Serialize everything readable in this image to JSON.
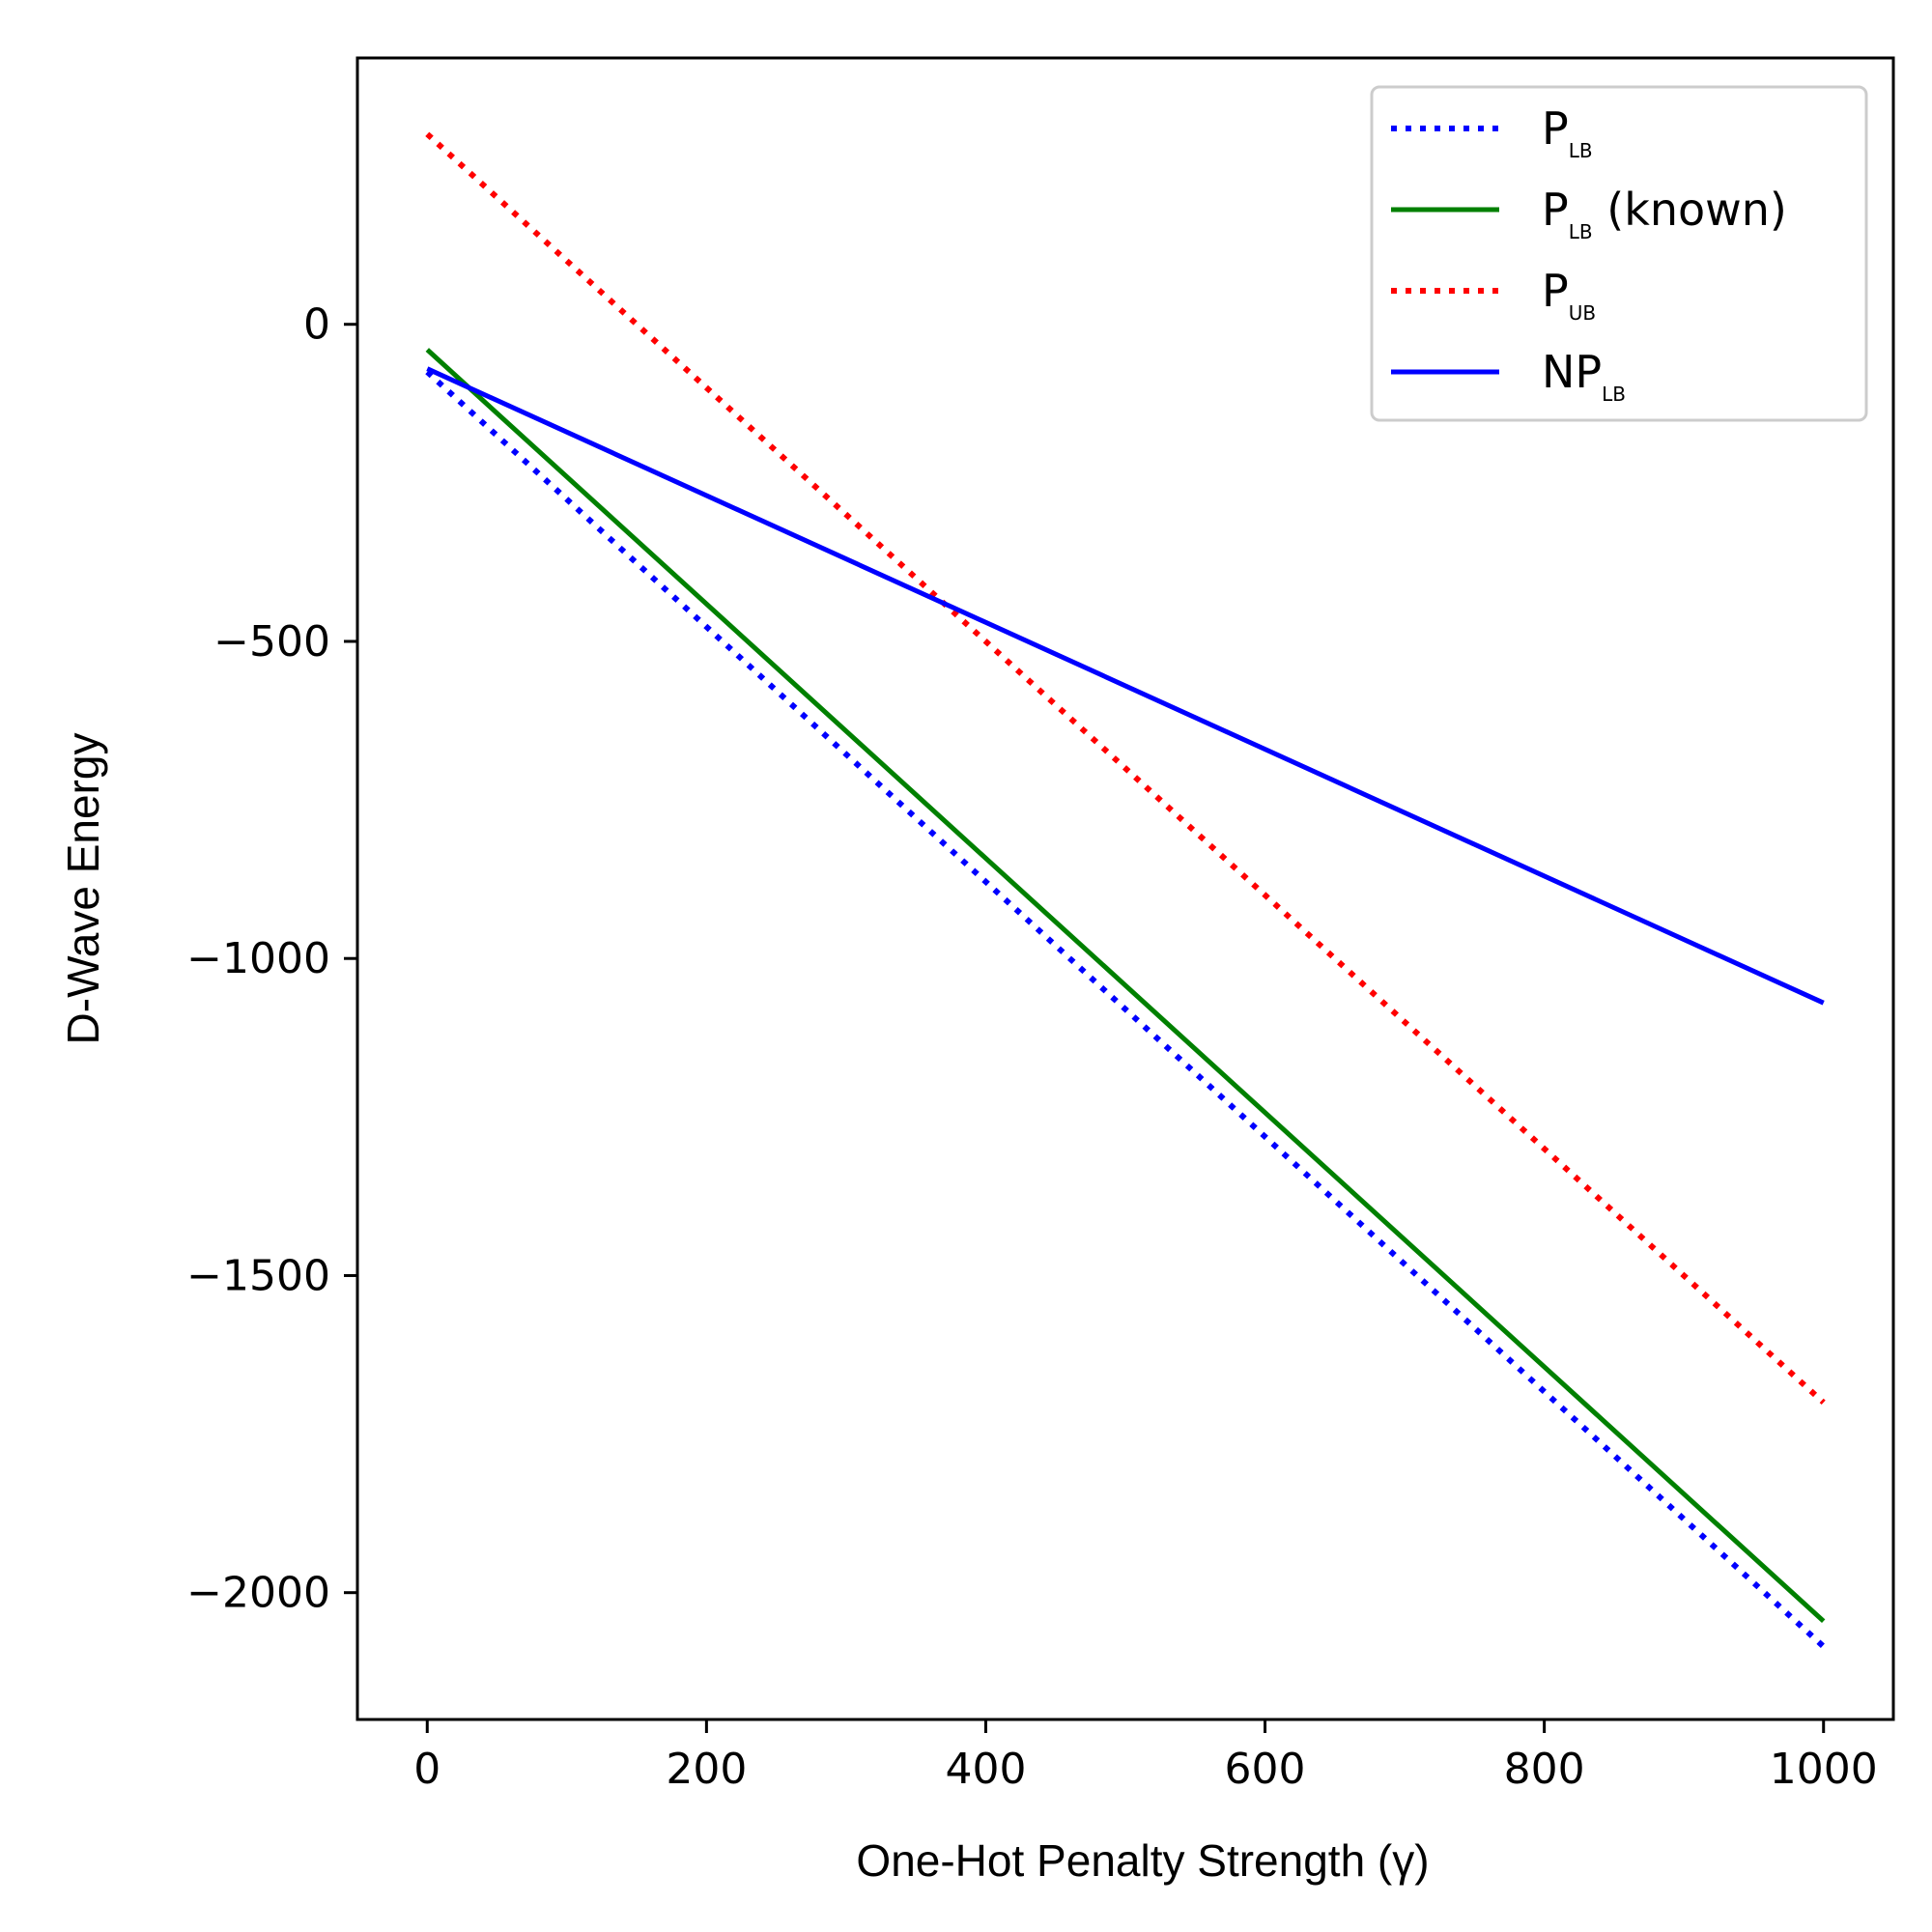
{
  "chart_data": {
    "type": "line",
    "xlabel": "One-Hot Penalty Strength (γ)",
    "ylabel": "D-Wave Energy",
    "xlim": [
      -50,
      1050
    ],
    "ylim": [
      -2200,
      420
    ],
    "xticks": [
      0,
      200,
      400,
      600,
      800,
      1000
    ],
    "yticks": [
      0,
      -500,
      -1000,
      -1500,
      -2000
    ],
    "xtick_labels": [
      "0",
      "200",
      "400",
      "600",
      "800",
      "1000"
    ],
    "ytick_labels": [
      "0",
      "−500",
      "−1000",
      "−1500",
      "−2000"
    ],
    "grid": false,
    "legend_position": "top-right",
    "series": [
      {
        "name": "P",
        "sub": "LB",
        "suffix": "",
        "color": "#0000ff",
        "style": "dotted",
        "x": [
          0,
          1000
        ],
        "y": [
          -75,
          -2085
        ]
      },
      {
        "name": "P",
        "sub": "LB",
        "suffix": " (known)",
        "color": "#008000",
        "style": "solid",
        "x": [
          0,
          1000
        ],
        "y": [
          -40,
          -2045
        ]
      },
      {
        "name": "P",
        "sub": "UB",
        "suffix": "",
        "color": "#ff0000",
        "style": "dotted",
        "x": [
          0,
          1000
        ],
        "y": [
          300,
          -1700
        ]
      },
      {
        "name": "NP",
        "sub": "LB",
        "suffix": "",
        "color": "#0000ff",
        "style": "solid",
        "x": [
          0,
          1000
        ],
        "y": [
          -70,
          -1070
        ]
      }
    ]
  }
}
